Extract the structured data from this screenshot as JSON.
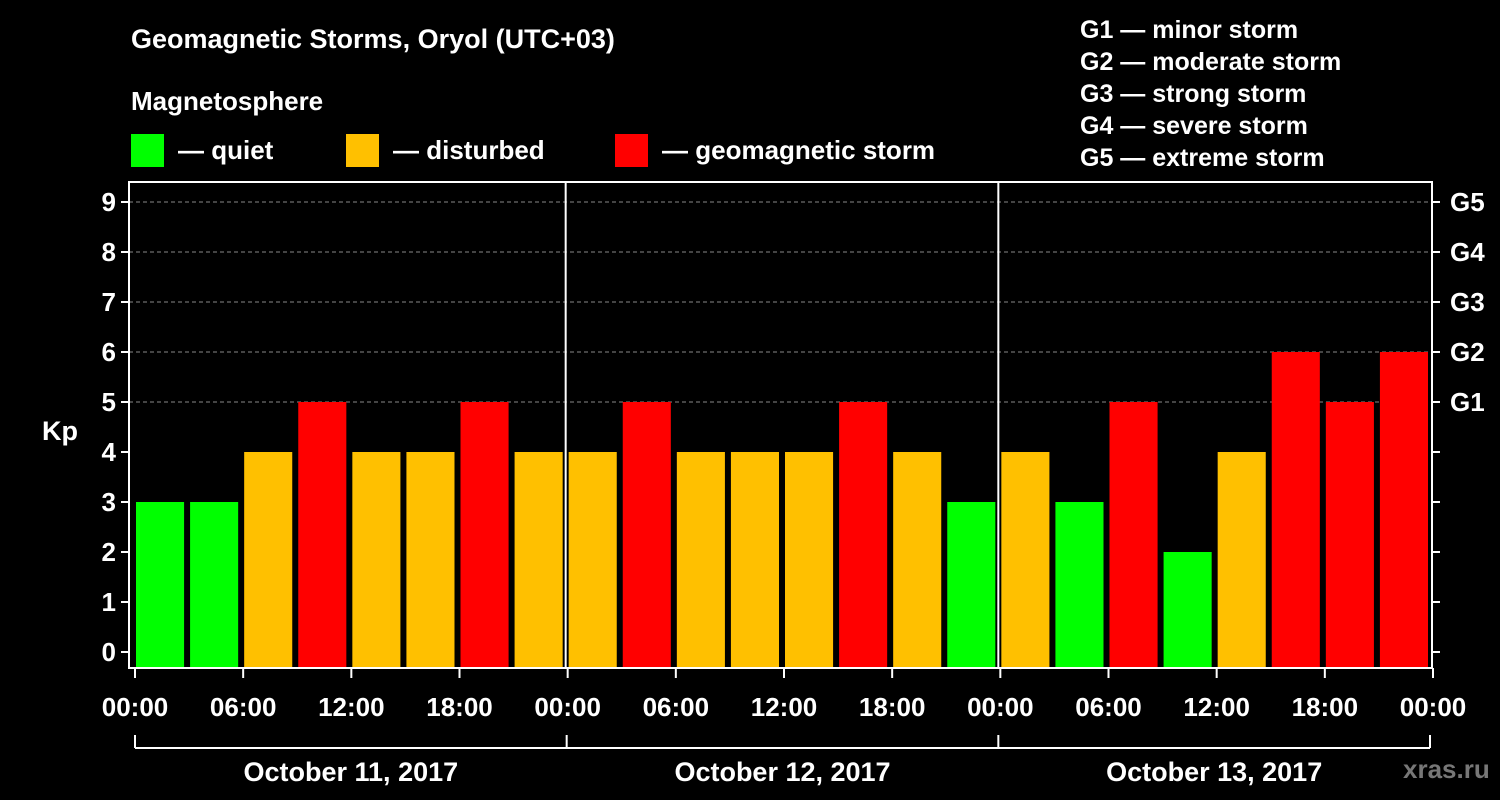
{
  "title": "Geomagnetic Storms, Oryol (UTC+03)",
  "subtitle": "Magnetosphere",
  "legend": [
    {
      "label": "— quiet",
      "color": "#00ff00"
    },
    {
      "label": "— disturbed",
      "color": "#ffc000"
    },
    {
      "label": "— geomagnetic storm",
      "color": "#ff0000"
    }
  ],
  "scale": [
    "G1 — minor storm",
    "G2 — moderate storm",
    "G3 — strong storm",
    "G4 — severe storm",
    "G5 — extreme storm"
  ],
  "watermark": "xras.ru",
  "colors": {
    "quiet": "#00ff00",
    "disturbed": "#ffc000",
    "storm": "#ff0000"
  },
  "chart_data": {
    "type": "bar",
    "ylabel": "Kp",
    "ylim": [
      0,
      9
    ],
    "yticks": [
      "0",
      "1",
      "2",
      "3",
      "4",
      "5",
      "6",
      "7",
      "8",
      "9"
    ],
    "right_ticks": [
      {
        "kp": 5,
        "label": "G1"
      },
      {
        "kp": 6,
        "label": "G2"
      },
      {
        "kp": 7,
        "label": "G3"
      },
      {
        "kp": 8,
        "label": "G4"
      },
      {
        "kp": 9,
        "label": "G5"
      }
    ],
    "gridlines": [
      5,
      6,
      7,
      8,
      9
    ],
    "grid_style": "dashed",
    "xtick_labels": [
      "00:00",
      "06:00",
      "12:00",
      "18:00",
      "00:00",
      "06:00",
      "12:00",
      "18:00",
      "00:00",
      "06:00",
      "12:00",
      "18:00",
      "00:00"
    ],
    "days": [
      "October 11, 2017",
      "October 12, 2017",
      "October 13, 2017"
    ],
    "interval_hours": 3,
    "values": [
      3,
      3,
      4,
      5,
      4,
      4,
      5,
      4,
      4,
      5,
      4,
      4,
      4,
      5,
      4,
      3,
      4,
      3,
      5,
      2,
      4,
      6,
      5,
      6
    ],
    "levels": [
      "quiet",
      "quiet",
      "disturbed",
      "storm",
      "disturbed",
      "disturbed",
      "storm",
      "disturbed",
      "disturbed",
      "storm",
      "disturbed",
      "disturbed",
      "disturbed",
      "storm",
      "disturbed",
      "quiet",
      "disturbed",
      "quiet",
      "storm",
      "quiet",
      "disturbed",
      "storm",
      "storm",
      "storm"
    ]
  }
}
